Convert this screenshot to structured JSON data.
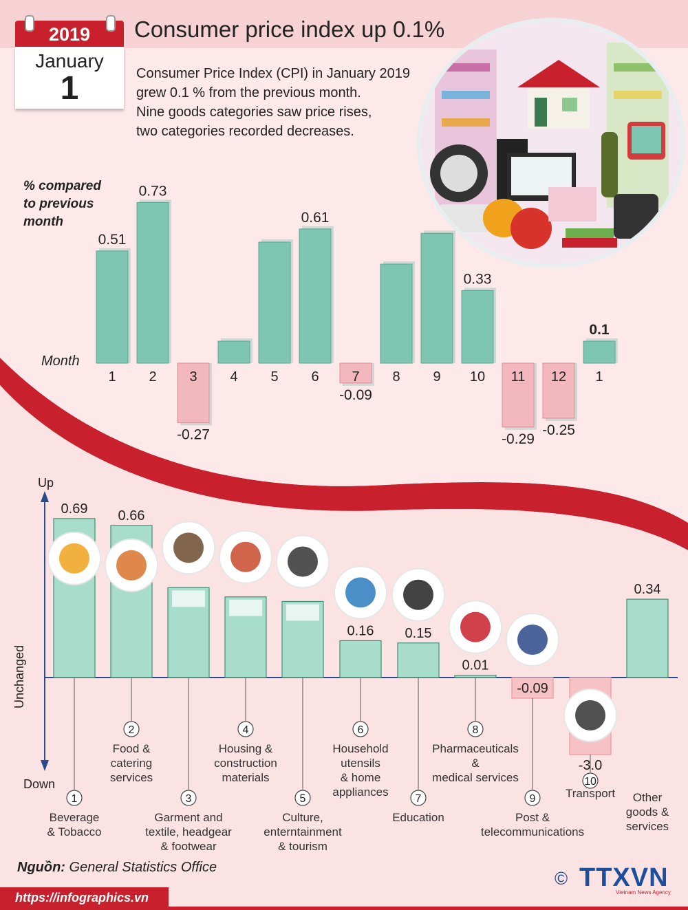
{
  "header": {
    "year": "2019",
    "month": "January",
    "day": "1",
    "title": "Consumer price index up 0.1%",
    "description": [
      "Consumer Price Index (CPI) in January 2019",
      "grew 0.1 % from the previous month.",
      "Nine goods categories saw price rises,",
      "two categories recorded decreases."
    ]
  },
  "chart_labels": {
    "top_ylabel": [
      "% compared",
      "to previous",
      "month"
    ],
    "top_xlabel": "Month",
    "bottom_up": "Up",
    "bottom_down": "Down",
    "bottom_unchanged": "Unchanged"
  },
  "chart_data": [
    {
      "type": "bar",
      "xlabel": "Month",
      "ylabel": "% compared to previous month",
      "categories": [
        "1",
        "2",
        "3",
        "4",
        "5",
        "6",
        "7",
        "8",
        "9",
        "10",
        "11",
        "12",
        "1"
      ],
      "values": [
        0.51,
        0.73,
        -0.27,
        0.1,
        0.55,
        0.61,
        -0.09,
        0.45,
        0.59,
        0.33,
        -0.29,
        -0.25,
        0.1
      ],
      "value_labels": [
        "0.51",
        "0.73",
        "-0.27",
        "",
        "",
        "0.61",
        "-0.09",
        "",
        "",
        "0.33",
        "-0.29",
        "-0.25",
        "0.1"
      ],
      "colors": {
        "positive": "#7ec6b1",
        "negative": "#f2b8bd"
      }
    },
    {
      "type": "bar",
      "categories": [
        {
          "num": "1",
          "lines": [
            "Beverage",
            "& Tobacco"
          ]
        },
        {
          "num": "2",
          "lines": [
            "Food &",
            "catering",
            "services"
          ]
        },
        {
          "num": "3",
          "lines": [
            "Garment and",
            "textile, headgear",
            "& footwear"
          ]
        },
        {
          "num": "4",
          "lines": [
            "Housing &",
            "construction",
            "materials"
          ]
        },
        {
          "num": "5",
          "lines": [
            "Culture,",
            "enterntainment",
            "& tourism"
          ]
        },
        {
          "num": "6",
          "lines": [
            "Household",
            "utensils",
            "& home",
            "appliances"
          ]
        },
        {
          "num": "7",
          "lines": [
            "Education"
          ]
        },
        {
          "num": "8",
          "lines": [
            "Pharmaceuticals",
            "&",
            "medical services"
          ]
        },
        {
          "num": "9",
          "lines": [
            "Post &",
            "telecommunications"
          ]
        },
        {
          "num": "10",
          "lines": [
            "Transport"
          ]
        },
        {
          "num": "",
          "lines": [
            "Other",
            "goods &",
            "services"
          ]
        }
      ],
      "values": [
        0.69,
        0.66,
        0.39,
        0.35,
        0.33,
        0.16,
        0.15,
        0.01,
        -0.09,
        -3.0,
        0.34
      ],
      "value_labels": [
        "0.69",
        "0.66",
        "0.39",
        "0.35",
        "0.33",
        "0.16",
        "0.15",
        "0.01",
        "-0.09",
        "-3.0",
        "0.34"
      ],
      "icons": [
        "drinks-cigarettes-icon",
        "food-plate-icon",
        "shoes-shirt-icon",
        "house-icon",
        "clapperboard-icon",
        "washing-machine-icon",
        "graduation-cap-icon",
        "pills-icon",
        "radio-tower-icon",
        "traffic-light-icon",
        ""
      ],
      "colors": {
        "positive": "#a8dccb",
        "negative": "#f7c2c6",
        "axis": "#2b4a8a"
      }
    }
  ],
  "footer": {
    "source_label": "Nguồn:",
    "source": "General Statistics Office",
    "url": "https://infographics.vn",
    "copyright": "©",
    "logo": "TTXVN",
    "logo_sub": "Vietnam News Agency"
  },
  "colors": {
    "brand_red": "#c8202c",
    "background": "#fbe3e4",
    "logo_blue": "#1c4f9c"
  }
}
